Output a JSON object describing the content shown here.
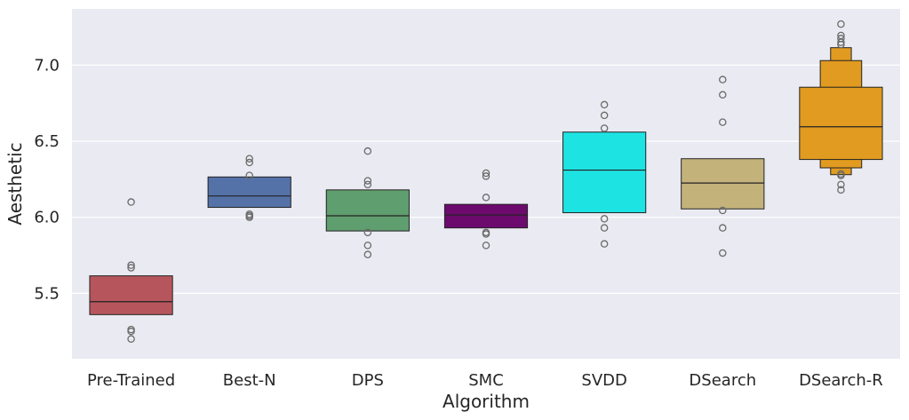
{
  "chart_data": {
    "type": "boxen",
    "xlabel": "Algorithm",
    "ylabel": "Aesthetic",
    "ylim": [
      5.07,
      7.37
    ],
    "yticks": [
      5.5,
      6.0,
      6.5,
      7.0
    ],
    "ytick_labels": [
      "5.5",
      "6.0",
      "6.5",
      "7.0"
    ],
    "grid": true,
    "categories": [
      "Pre-Trained",
      "Best-N",
      "DPS",
      "SMC",
      "SVDD",
      "DSearch",
      "DSearch-R"
    ],
    "colors": [
      "#b6565c",
      "#5472a8",
      "#5f9e6e",
      "#6d0a6e",
      "#1ee3e3",
      "#c3b37b",
      "#e19b20"
    ],
    "series": [
      {
        "name": "Pre-Trained",
        "boxes": [
          [
            5.36,
            5.615
          ]
        ],
        "median": 5.445,
        "outliers": [
          6.1,
          5.685,
          5.668,
          5.262,
          5.25,
          5.2
        ]
      },
      {
        "name": "Best-N",
        "boxes": [
          [
            6.065,
            6.265
          ]
        ],
        "median": 6.14,
        "outliers": [
          6.385,
          6.36,
          6.275,
          6.02,
          6.01,
          6.0
        ]
      },
      {
        "name": "DPS",
        "boxes": [
          [
            5.91,
            6.18
          ]
        ],
        "median": 6.01,
        "outliers": [
          6.435,
          6.24,
          6.215,
          5.9,
          5.815,
          5.755
        ]
      },
      {
        "name": "SMC",
        "boxes": [
          [
            5.93,
            6.085
          ]
        ],
        "median": 6.015,
        "outliers": [
          6.29,
          6.27,
          6.13,
          5.9,
          5.89,
          5.815
        ]
      },
      {
        "name": "SVDD",
        "boxes": [
          [
            6.03,
            6.56
          ]
        ],
        "median": 6.31,
        "outliers": [
          6.74,
          6.67,
          6.585,
          5.99,
          5.93,
          5.825
        ]
      },
      {
        "name": "DSearch",
        "boxes": [
          [
            6.055,
            6.385
          ]
        ],
        "median": 6.225,
        "outliers": [
          6.905,
          6.805,
          6.625,
          6.045,
          5.93,
          5.765
        ]
      },
      {
        "name": "DSearch-R",
        "boxes": [
          [
            6.38,
            6.855
          ],
          [
            6.325,
            7.03
          ],
          [
            6.28,
            7.115
          ]
        ],
        "median": 6.595,
        "outliers": [
          7.27,
          7.195,
          7.175,
          7.15,
          7.135,
          6.285,
          6.275,
          6.215,
          6.18
        ]
      }
    ]
  }
}
